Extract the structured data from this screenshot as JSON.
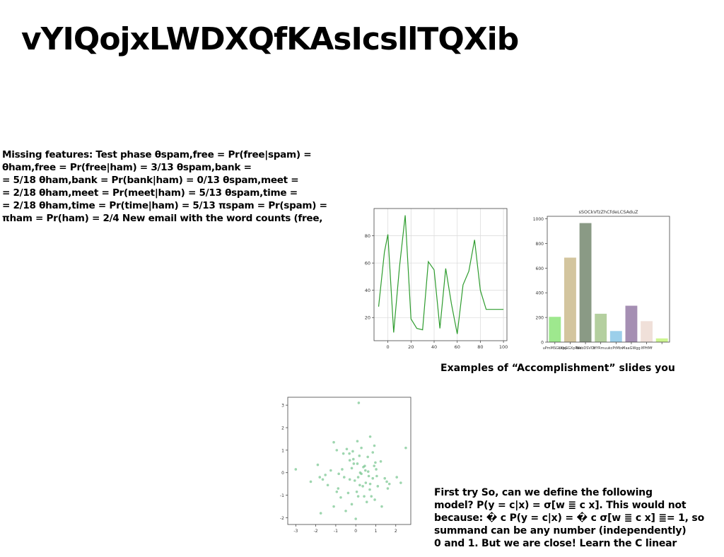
{
  "slide": {
    "title": "vYIQojxLWDXQfKAsIcsllTQXib",
    "left_text_lines": [
      "Missing features: Test phase θspam,free = Pr(free|spam) =",
      "θham,free = Pr(free|ham) = 3/13 θspam,bank =",
      "= 5/18 θham,bank = Pr(bank|ham) = 0/13 θspam,meet =",
      "= 2/18 θham,meet = Pr(meet|ham) = 5/13 θspam,time =",
      "= 2/18 θham,time = Pr(time|ham) = 5/13 πspam = Pr(spam) =",
      "πham = Pr(ham) = 2/4 New email with the word counts (free,"
    ],
    "caption": "Examples of “Accomplishment” slides you",
    "bottom_text_lines": [
      "First try So, can we define the following",
      "model? P(y = c|x) = σ[w ≣ c x]. This would not",
      "because: � c P(y = c|x) = � c σ[w ≣ c x] ≣= 1, so",
      "summand can be any number (independently)",
      "0 and 1. But we are close! Learn the C linear"
    ]
  },
  "chart_data": [
    {
      "type": "line",
      "x": [
        -8,
        -3,
        0,
        5,
        10,
        15,
        20,
        25,
        30,
        35,
        40,
        45,
        50,
        55,
        60,
        65,
        70,
        75,
        80,
        85,
        90,
        95,
        100
      ],
      "y": [
        28,
        68,
        81,
        9,
        57,
        95,
        19,
        12,
        11,
        61,
        55,
        12,
        56,
        30,
        8,
        44,
        54,
        77,
        40,
        26,
        26,
        26,
        26
      ],
      "xticks": [
        0,
        20,
        40,
        60,
        80,
        100
      ],
      "yticks": [
        20,
        40,
        60,
        80
      ],
      "xlim": [
        -12,
        103
      ],
      "ylim": [
        3,
        100
      ],
      "grid": true,
      "color": "#2e9c2e"
    },
    {
      "type": "bar",
      "title": "sSOCkVfzZhCfdeLCSAduZ",
      "categories": [
        "uPmMSGLkbp",
        "tXpGGXpPak",
        "WebDSVOt",
        "IifYRmuu",
        "kcPtMbv",
        "MaaGWgg",
        "lfPHMf",
        ""
      ],
      "values": [
        205,
        685,
        965,
        230,
        90,
        295,
        170,
        30
      ],
      "colors": [
        "#9ee88e",
        "#d3c59e",
        "#8a9a85",
        "#b4cf9f",
        "#9ccfea",
        "#a58fb3",
        "#f0e0d9",
        "#ccf58f"
      ],
      "yticks": [
        0,
        200,
        400,
        600,
        800,
        1000
      ],
      "ylim": [
        0,
        1020
      ]
    },
    {
      "type": "scatter",
      "x": [
        0.15,
        -1.1,
        -0.45,
        0.72,
        0.28,
        0.93,
        -0.32,
        0.45,
        -0.3,
        0.6,
        0.85,
        -1.9,
        -1.65,
        -0.12,
        0.38,
        -0.68,
        0.08,
        -1.25,
        1.45,
        1.05,
        0.22,
        -0.85,
        0.5,
        -0.58,
        0.98,
        -0.05,
        0.62,
        -1.52,
        -0.2,
        1.25,
        0.35,
        -0.95,
        0.7,
        1.55,
        -1.4,
        -0.38,
        0.12,
        1.68,
        -0.75,
        0.95,
        -0.2,
        0.42,
        -1.1,
        0.55,
        1.3,
        0.0,
        2.05,
        -0.5,
        0.28,
        -0.88,
        1.6,
        0.78,
        -0.15,
        0.92,
        -1.75,
        0.18,
        0.65,
        -0.62,
        1.1,
        -0.3,
        0.08,
        0.48,
        -3.0,
        2.5,
        0.12,
        -2.25,
        1.02,
        -1.8,
        0.2,
        -0.95,
        0.05,
        0.85,
        2.25,
        -0.1,
        0.72
      ],
      "y": [
        3.1,
        1.35,
        1.05,
        1.6,
        1.1,
        1.2,
        0.85,
        0.3,
        0.55,
        0.7,
        0.9,
        0.35,
        -0.3,
        0.6,
        0.25,
        0.15,
        0.4,
        0.1,
        -0.25,
        -0.15,
        0.0,
        -0.05,
        -0.45,
        -0.2,
        0.45,
        -0.35,
        0.05,
        -0.1,
        0.2,
        0.5,
        -0.6,
        -0.85,
        -0.75,
        -0.4,
        -0.55,
        -0.9,
        -1.05,
        -0.5,
        -1.1,
        -1.2,
        -1.4,
        -1.05,
        -1.5,
        -1.3,
        -1.5,
        -2.05,
        -0.2,
        -1.7,
        -0.05,
        -0.7,
        -0.7,
        -1.05,
        0.95,
        0.3,
        -1.8,
        0.75,
        -0.15,
        0.85,
        -0.6,
        -0.3,
        1.4,
        0.1,
        0.15,
        1.1,
        -0.2,
        -0.4,
        0.15,
        -0.2,
        -0.55,
        1.0,
        -0.85,
        -0.25,
        -0.45,
        0.4,
        -0.5
      ],
      "xticks": [
        -3,
        -2,
        -1,
        0,
        1,
        2
      ],
      "yticks": [
        -2,
        -1,
        0,
        1,
        2,
        3
      ],
      "xlim": [
        -3.4,
        2.75
      ],
      "ylim": [
        -2.3,
        3.35
      ],
      "color": "#5dba7a"
    }
  ]
}
